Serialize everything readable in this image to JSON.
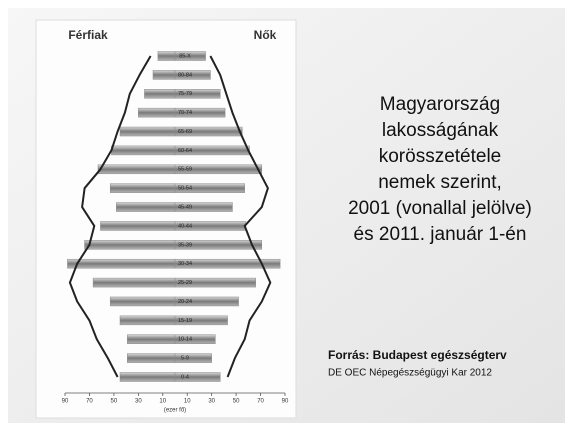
{
  "chart_data": {
    "type": "pyramid",
    "title_lines": [
      "Magyarország",
      "lakosságának",
      "korösszetétele",
      "nemek szerint,",
      "2001 (vonallal jelölve)",
      "és 2011. január 1-én"
    ],
    "source": "Forrás: Budapest egészségterv",
    "source_detail": "DE OEC Népegészségügyi Kar 2012",
    "x_label": "(ezer fő)",
    "categories": [
      "0-4",
      "5-9",
      "10-14",
      "15-19",
      "20-24",
      "25-29",
      "30-34",
      "35-39",
      "40-44",
      "45-49",
      "50-54",
      "55-59",
      "60-64",
      "65-69",
      "70-74",
      "75-79",
      "80-84",
      "85-X"
    ],
    "series": [
      {
        "name": "Férfiak",
        "color": "#8a8a8a",
        "values": [
          45,
          39,
          39,
          45,
          53,
          67,
          88,
          74,
          61,
          48,
          53,
          63,
          52,
          45,
          30,
          25,
          18,
          14
        ],
        "line_values": [
          47,
          55,
          64,
          70,
          80,
          86,
          80,
          70,
          66,
          76,
          74,
          61,
          52,
          47,
          41,
          37,
          29,
          20
        ]
      },
      {
        "name": "Nők",
        "color": "#8a8a8a",
        "values": [
          37,
          30,
          33,
          43,
          52,
          66,
          86,
          71,
          58,
          47,
          57,
          71,
          61,
          55,
          41,
          37,
          29,
          25
        ],
        "line_values": [
          43,
          49,
          57,
          61,
          71,
          78,
          71,
          63,
          57,
          71,
          76,
          68,
          60,
          53,
          47,
          42,
          37,
          29
        ]
      }
    ],
    "line_color": "#222222",
    "xlim": [
      0,
      90
    ],
    "xticks": [
      10,
      30,
      50,
      70,
      90
    ]
  }
}
